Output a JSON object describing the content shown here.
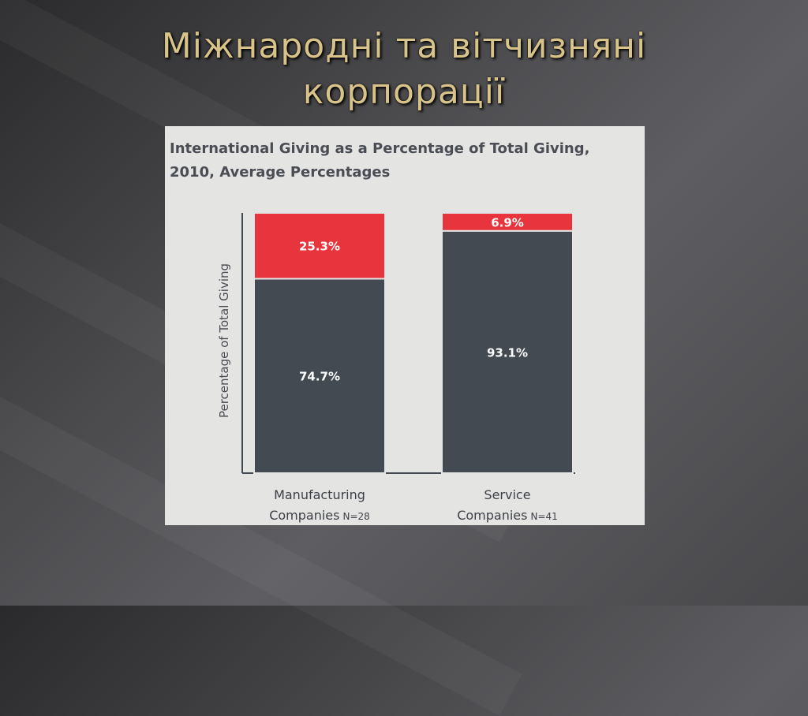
{
  "slide": {
    "title": "Міжнародні та вітчизняні корпорації"
  },
  "colors": {
    "international": "#e8343c",
    "domestic": "#434a51",
    "panel": "#e4e4e2",
    "title_text": "#d8c48a"
  },
  "chart_data": {
    "type": "bar",
    "stacked": true,
    "title": "International Giving as a Percentage of Total Giving, 2010, Average Percentages",
    "ylabel": "Percentage of Total Giving",
    "xlabel": "",
    "ylim": [
      0,
      100
    ],
    "grid": false,
    "categories": [
      {
        "name": "Manufacturing",
        "line2": "Companies",
        "n": "N=28"
      },
      {
        "name": "Service",
        "line2": "Companies",
        "n": "N=41"
      }
    ],
    "series": [
      {
        "values": [
          74.7,
          93.1
        ],
        "labels": [
          "74.7%",
          "93.1%"
        ],
        "color": "#434a51"
      },
      {
        "values": [
          25.3,
          6.9
        ],
        "labels": [
          "25.3%",
          "6.9%"
        ],
        "color": "#e8343c"
      }
    ]
  }
}
